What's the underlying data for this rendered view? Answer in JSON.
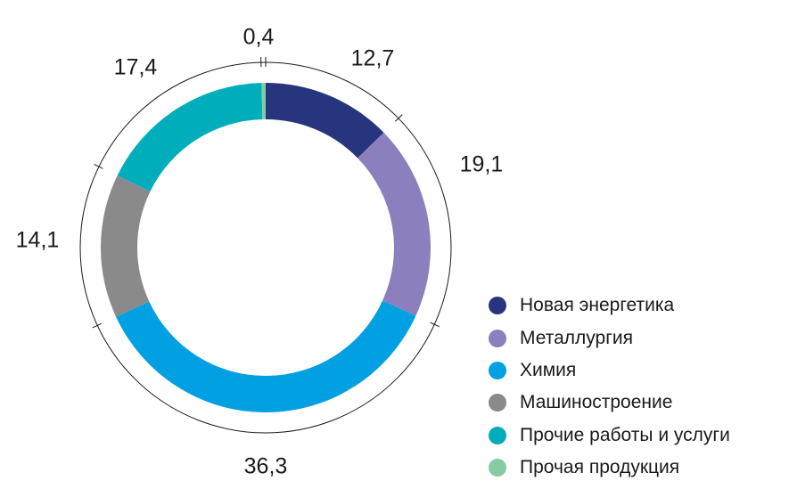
{
  "chart_data": {
    "type": "pie",
    "variant": "donut",
    "start": "top",
    "direction": "clockwise",
    "legend_position": "right-bottom",
    "slices": [
      {
        "name": "Новая энергетика",
        "value": 12.7,
        "label": "12,7",
        "color": "#27357e"
      },
      {
        "name": "Металлургия",
        "value": 19.1,
        "label": "19,1",
        "color": "#8b80bd"
      },
      {
        "name": "Химия",
        "value": 36.3,
        "label": "36,3",
        "color": "#00a0e3"
      },
      {
        "name": "Машиностроение",
        "value": 14.1,
        "label": "14,1",
        "color": "#8a8a8a"
      },
      {
        "name": "Прочие работы и услуги",
        "value": 17.4,
        "label": "17,4",
        "color": "#00aebb"
      },
      {
        "name": "Прочая продукция",
        "value": 0.4,
        "label": "0,4",
        "color": "#86cba4"
      }
    ]
  }
}
